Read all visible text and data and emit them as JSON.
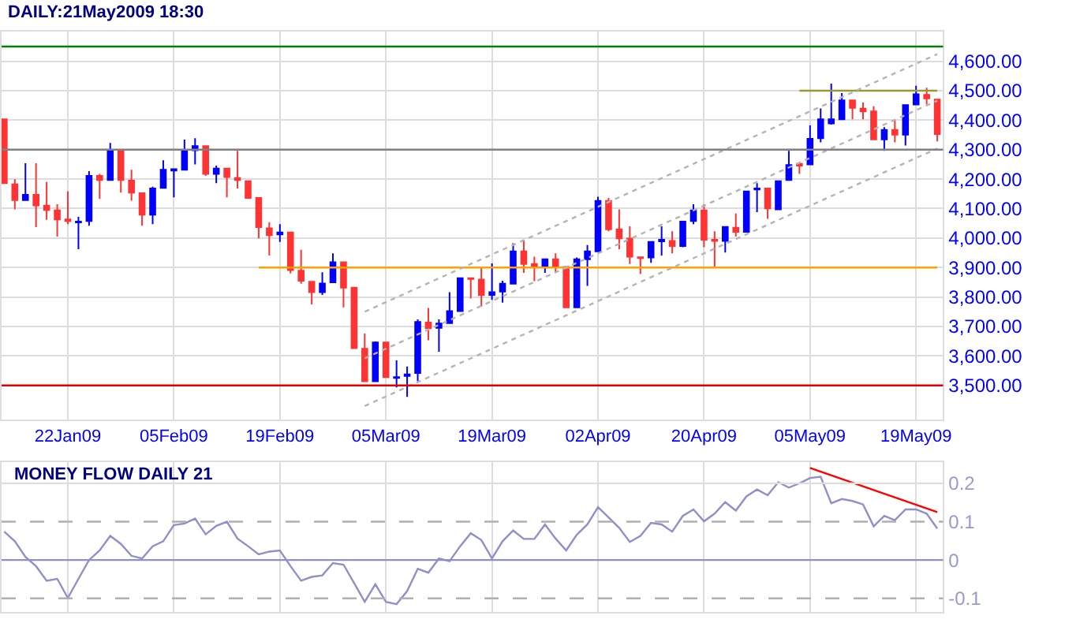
{
  "chart_data": [
    {
      "type": "candlestick",
      "title": "DAILY:21May2009 18:30",
      "categories": [
        null,
        null,
        null,
        null,
        null,
        null,
        "22Jan09",
        null,
        null,
        null,
        null,
        null,
        null,
        null,
        null,
        null,
        "05Feb09",
        null,
        null,
        null,
        null,
        null,
        null,
        null,
        null,
        null,
        "19Feb09",
        null,
        null,
        null,
        null,
        null,
        null,
        null,
        null,
        null,
        "05Mar09",
        null,
        null,
        null,
        null,
        null,
        null,
        null,
        null,
        null,
        "19Mar09",
        null,
        null,
        null,
        null,
        null,
        null,
        null,
        null,
        null,
        "02Apr09",
        null,
        null,
        null,
        null,
        null,
        null,
        null,
        null,
        null,
        "20Apr09",
        null,
        null,
        null,
        null,
        null,
        null,
        null,
        null,
        null,
        "05May09",
        null,
        null,
        null,
        null,
        null,
        null,
        null,
        null,
        null,
        "19May09",
        null,
        null
      ],
      "ohlc": [
        [
          4403,
          4403,
          4186,
          4186
        ],
        [
          4182,
          4200,
          4097,
          4129
        ],
        [
          4129,
          4254,
          4129,
          4147
        ],
        [
          4147,
          4254,
          4037,
          4111
        ],
        [
          4110,
          4190,
          4062,
          4095
        ],
        [
          4094,
          4115,
          4005,
          4063
        ],
        [
          4063,
          4158,
          4047,
          4058
        ],
        [
          4053,
          4072,
          3962,
          4056
        ],
        [
          4058,
          4227,
          4042,
          4211
        ],
        [
          4211,
          4218,
          4133,
          4197
        ],
        [
          4197,
          4323,
          4197,
          4296
        ],
        [
          4296,
          4296,
          4154,
          4197
        ],
        [
          4195,
          4232,
          4127,
          4154
        ],
        [
          4152,
          4152,
          4042,
          4079
        ],
        [
          4079,
          4174,
          4047,
          4168
        ],
        [
          4170,
          4264,
          4168,
          4232
        ],
        [
          4229,
          4236,
          4138,
          4234
        ],
        [
          4232,
          4334,
          4229,
          4298
        ],
        [
          4298,
          4339,
          4250,
          4312
        ],
        [
          4312,
          4312,
          4211,
          4218
        ],
        [
          4218,
          4246,
          4186,
          4236
        ],
        [
          4236,
          4236,
          4138,
          4207
        ],
        [
          4204,
          4296,
          4168,
          4197
        ],
        [
          4193,
          4193,
          4133,
          4136
        ],
        [
          4136,
          4136,
          3999,
          4037
        ],
        [
          4033,
          4054,
          3941,
          4010
        ],
        [
          4012,
          4047,
          3987,
          4019
        ],
        [
          4019,
          4019,
          3880,
          3891
        ],
        [
          3889,
          3960,
          3845,
          3855
        ],
        [
          3852,
          3852,
          3775,
          3816
        ],
        [
          3816,
          3884,
          3807,
          3846
        ],
        [
          3850,
          3948,
          3850,
          3918
        ],
        [
          3918,
          3918,
          3765,
          3832
        ],
        [
          3832,
          3832,
          3626,
          3626
        ],
        [
          3624,
          3676,
          3514,
          3514
        ],
        [
          3514,
          3649,
          3514,
          3646
        ],
        [
          3646,
          3646,
          3525,
          3528
        ],
        [
          3525,
          3585,
          3493,
          3528
        ],
        [
          3532,
          3564,
          3461,
          3537
        ],
        [
          3542,
          3724,
          3514,
          3715
        ],
        [
          3713,
          3763,
          3653,
          3694
        ],
        [
          3695,
          3724,
          3614,
          3710
        ],
        [
          3711,
          3816,
          3711,
          3752
        ],
        [
          3752,
          3864,
          3752,
          3864
        ],
        [
          3864,
          3864,
          3795,
          3861
        ],
        [
          3859,
          3902,
          3768,
          3807
        ],
        [
          3807,
          3914,
          3790,
          3816
        ],
        [
          3818,
          3855,
          3781,
          3845
        ],
        [
          3845,
          3982,
          3845,
          3955
        ],
        [
          3955,
          3994,
          3882,
          3912
        ],
        [
          3912,
          3937,
          3854,
          3903
        ],
        [
          3903,
          3928,
          3882,
          3928
        ],
        [
          3928,
          3948,
          3882,
          3903
        ],
        [
          3902,
          3902,
          3765,
          3765
        ],
        [
          3765,
          3934,
          3765,
          3928
        ],
        [
          3928,
          3976,
          3838,
          3955
        ],
        [
          3955,
          4140,
          3955,
          4126
        ],
        [
          4126,
          4136,
          4023,
          4030
        ],
        [
          4030,
          4097,
          3962,
          3999
        ],
        [
          3998,
          4040,
          3912,
          3937
        ],
        [
          3935,
          3935,
          3878,
          3932
        ],
        [
          3934,
          3987,
          3916,
          3987
        ],
        [
          3989,
          4040,
          3941,
          3994
        ],
        [
          3990,
          4023,
          3948,
          3973
        ],
        [
          3973,
          4056,
          3969,
          4056
        ],
        [
          4058,
          4115,
          4047,
          4094
        ],
        [
          4094,
          4115,
          3969,
          3994
        ],
        [
          3994,
          4023,
          3898,
          3990
        ],
        [
          3990,
          4040,
          3951,
          4038
        ],
        [
          4035,
          4083,
          4005,
          4021
        ],
        [
          4021,
          4158,
          4021,
          4158
        ],
        [
          4165,
          4186,
          4088,
          4168
        ],
        [
          4168,
          4168,
          4065,
          4101
        ],
        [
          4097,
          4193,
          4097,
          4193
        ],
        [
          4197,
          4296,
          4197,
          4248
        ],
        [
          4252,
          4252,
          4218,
          4246
        ],
        [
          4250,
          4382,
          4250,
          4337
        ],
        [
          4339,
          4440,
          4325,
          4403
        ],
        [
          4389,
          4524,
          4385,
          4403
        ],
        [
          4403,
          4492,
          4403,
          4467
        ],
        [
          4467,
          4470,
          4403,
          4442
        ],
        [
          4439,
          4460,
          4403,
          4430
        ],
        [
          4430,
          4447,
          4335,
          4335
        ],
        [
          4335,
          4376,
          4296,
          4367
        ],
        [
          4367,
          4399,
          4325,
          4351
        ],
        [
          4351,
          4451,
          4314,
          4451
        ],
        [
          4453,
          4517,
          4453,
          4488
        ],
        [
          4486,
          4510,
          4453,
          4474
        ],
        [
          4470,
          4470,
          4328,
          4353
        ]
      ],
      "colors": [
        "#ff3333",
        "#ff3333",
        "#0000ff",
        "#ff3333",
        "#ff3333",
        "#ff3333",
        "#ff3333",
        "#0000ff",
        "#0000ff",
        "#ff3333",
        "#0000ff",
        "#ff3333",
        "#ff3333",
        "#ff3333",
        "#0000ff",
        "#0000ff",
        "#0000ff",
        "#0000ff",
        "#0000ff",
        "#ff3333",
        "#0000ff",
        "#ff3333",
        "#ff3333",
        "#ff3333",
        "#ff3333",
        "#ff3333",
        "#0000ff",
        "#ff3333",
        "#ff3333",
        "#ff3333",
        "#0000ff",
        "#0000ff",
        "#ff3333",
        "#ff3333",
        "#ff3333",
        "#0000ff",
        "#ff3333",
        "#0000ff",
        "#0000ff",
        "#0000ff",
        "#ff3333",
        "#0000ff",
        "#0000ff",
        "#0000ff",
        "#ff3333",
        "#ff3333",
        "#0000ff",
        "#0000ff",
        "#0000ff",
        "#ff3333",
        "#ff3333",
        "#0000ff",
        "#ff3333",
        "#ff3333",
        "#0000ff",
        "#0000ff",
        "#0000ff",
        "#ff3333",
        "#ff3333",
        "#ff3333",
        "#ff3333",
        "#0000ff",
        "#0000ff",
        "#ff3333",
        "#0000ff",
        "#0000ff",
        "#ff3333",
        "#ff3333",
        "#0000ff",
        "#ff3333",
        "#0000ff",
        "#0000ff",
        "#ff3333",
        "#0000ff",
        "#0000ff",
        "#ff3333",
        "#0000ff",
        "#0000ff",
        "#0000ff",
        "#0000ff",
        "#ff3333",
        "#ff3333",
        "#ff3333",
        "#0000ff",
        "#ff3333",
        "#0000ff",
        "#0000ff",
        "#ff3333",
        "#ff3333"
      ],
      "series": [
        {
          "type": "line",
          "color": "#ffa000",
          "line_style": "solid",
          "values": [
            null,
            null,
            null,
            null,
            null,
            null,
            null,
            null,
            null,
            null,
            null,
            null,
            null,
            null,
            null,
            null,
            null,
            null,
            null,
            null,
            null,
            null,
            null,
            null,
            3900,
            null,
            null,
            null,
            null,
            null,
            null,
            null,
            null,
            null,
            null,
            null,
            null,
            null,
            null,
            null,
            null,
            null,
            null,
            null,
            null,
            null,
            null,
            null,
            null,
            null,
            null,
            null,
            null,
            null,
            null,
            null,
            null,
            null,
            null,
            null,
            null,
            null,
            null,
            null,
            null,
            null,
            null,
            null,
            null,
            null,
            null,
            null,
            null,
            null,
            null,
            null,
            null,
            null,
            null,
            null,
            null,
            null,
            null,
            null,
            null,
            null,
            null,
            null,
            3900
          ]
        },
        {
          "type": "line",
          "color": "#999933",
          "line_style": "solid",
          "values": [
            null,
            null,
            null,
            null,
            null,
            null,
            null,
            null,
            null,
            null,
            null,
            null,
            null,
            null,
            null,
            null,
            null,
            null,
            null,
            null,
            null,
            null,
            null,
            null,
            null,
            null,
            null,
            null,
            null,
            null,
            null,
            null,
            null,
            null,
            null,
            null,
            null,
            null,
            null,
            null,
            null,
            null,
            null,
            null,
            null,
            null,
            null,
            null,
            null,
            null,
            null,
            null,
            null,
            null,
            null,
            null,
            null,
            null,
            null,
            null,
            null,
            null,
            null,
            null,
            null,
            null,
            null,
            null,
            null,
            null,
            null,
            null,
            null,
            null,
            null,
            4500,
            null,
            null,
            null,
            null,
            null,
            null,
            null,
            null,
            null,
            null,
            null,
            null,
            4500
          ]
        },
        {
          "type": "line",
          "color": "#b4b4b4",
          "line_style": "dotted",
          "values": [
            null,
            null,
            null,
            null,
            null,
            null,
            null,
            null,
            null,
            null,
            null,
            null,
            null,
            null,
            null,
            null,
            null,
            null,
            null,
            null,
            null,
            null,
            null,
            null,
            null,
            null,
            null,
            null,
            null,
            null,
            null,
            null,
            null,
            null,
            3750,
            null,
            null,
            null,
            null,
            null,
            null,
            null,
            null,
            null,
            null,
            null,
            null,
            null,
            null,
            null,
            null,
            null,
            null,
            null,
            null,
            null,
            null,
            null,
            null,
            null,
            null,
            null,
            null,
            null,
            null,
            null,
            null,
            null,
            null,
            null,
            null,
            null,
            null,
            null,
            null,
            null,
            null,
            null,
            null,
            null,
            null,
            null,
            null,
            null,
            null,
            null,
            null,
            null,
            4624
          ]
        },
        {
          "type": "line",
          "color": "#b4b4b4",
          "line_style": "dotted",
          "values": [
            null,
            null,
            null,
            null,
            null,
            null,
            null,
            null,
            null,
            null,
            null,
            null,
            null,
            null,
            null,
            null,
            null,
            null,
            null,
            null,
            null,
            null,
            null,
            null,
            null,
            null,
            null,
            null,
            null,
            null,
            null,
            null,
            null,
            null,
            3592,
            null,
            null,
            null,
            null,
            null,
            null,
            null,
            null,
            null,
            null,
            null,
            null,
            null,
            null,
            null,
            null,
            null,
            null,
            null,
            null,
            null,
            null,
            null,
            null,
            null,
            null,
            null,
            null,
            null,
            null,
            null,
            null,
            null,
            null,
            null,
            null,
            null,
            null,
            null,
            null,
            null,
            null,
            null,
            null,
            null,
            null,
            null,
            null,
            null,
            null,
            null,
            null,
            null,
            4466
          ]
        },
        {
          "type": "line",
          "color": "#b4b4b4",
          "line_style": "dotted",
          "values": [
            null,
            null,
            null,
            null,
            null,
            null,
            null,
            null,
            null,
            null,
            null,
            null,
            null,
            null,
            null,
            null,
            null,
            null,
            null,
            null,
            null,
            null,
            null,
            null,
            null,
            null,
            null,
            null,
            null,
            null,
            null,
            null,
            null,
            null,
            3430,
            null,
            null,
            null,
            null,
            null,
            null,
            null,
            null,
            null,
            null,
            null,
            null,
            null,
            null,
            null,
            null,
            null,
            null,
            null,
            null,
            null,
            null,
            null,
            null,
            null,
            null,
            null,
            null,
            null,
            null,
            null,
            null,
            null,
            null,
            null,
            null,
            null,
            null,
            null,
            null,
            null,
            null,
            null,
            null,
            null,
            null,
            null,
            null,
            null,
            null,
            null,
            null,
            null,
            4304
          ]
        }
      ],
      "ylim": [
        3385,
        4700
      ],
      "yticks": [
        {
          "value": 3500,
          "label": "3,500.00"
        },
        {
          "value": 3600,
          "label": "3,600.00"
        },
        {
          "value": 3700,
          "label": "3,700.00"
        },
        {
          "value": 3800,
          "label": "3,800.00"
        },
        {
          "value": 3900,
          "label": "3,900.00"
        },
        {
          "value": 4000,
          "label": "4,000.00"
        },
        {
          "value": 4100,
          "label": "4,100.00"
        },
        {
          "value": 4200,
          "label": "4,200.00"
        },
        {
          "value": 4300,
          "label": "4,300.00"
        },
        {
          "value": 4400,
          "label": "4,400.00"
        },
        {
          "value": 4500,
          "label": "4,500.00"
        },
        {
          "value": 4600,
          "label": "4,600.00"
        }
      ],
      "ref_lines": [
        {
          "axis": "y",
          "value": 4650,
          "color": "#008000"
        },
        {
          "axis": "y",
          "value": 4300,
          "color": "#808080"
        },
        {
          "axis": "y",
          "value": 3500,
          "color": "#e00000"
        }
      ],
      "grid": true
    },
    {
      "type": "line",
      "title": "MONEY FLOW DAILY 21",
      "categories": [
        null,
        null,
        null,
        null,
        null,
        null,
        null,
        null,
        null,
        null,
        null,
        null,
        null,
        null,
        null,
        null,
        null,
        null,
        null,
        null,
        null,
        null,
        null,
        null,
        null,
        null,
        null,
        null,
        null,
        null,
        null,
        null,
        null,
        null,
        null,
        null,
        null,
        null,
        null,
        null,
        null,
        null,
        null,
        null,
        null,
        null,
        null,
        null,
        null,
        null,
        null,
        null,
        null,
        null,
        null,
        null,
        null,
        null,
        null,
        null,
        null,
        null,
        null,
        null,
        null,
        null,
        null,
        null,
        null,
        null,
        null,
        null,
        null,
        null,
        null,
        null,
        null,
        null,
        null,
        null,
        null,
        null,
        null,
        null,
        null,
        null,
        null,
        null,
        null
      ],
      "series": [
        {
          "color": "#9090c8",
          "values": [
            0.074,
            0.049,
            0.008,
            -0.016,
            -0.054,
            -0.049,
            -0.099,
            -0.049,
            0.0,
            0.025,
            0.063,
            0.042,
            0.011,
            0.004,
            0.036,
            0.049,
            0.091,
            0.095,
            0.108,
            0.067,
            0.089,
            0.1,
            0.056,
            0.036,
            0.015,
            0.022,
            0.025,
            -0.016,
            -0.054,
            -0.044,
            -0.04,
            -0.008,
            -0.012,
            -0.06,
            -0.109,
            -0.063,
            -0.109,
            -0.115,
            -0.081,
            -0.023,
            -0.033,
            0.004,
            -0.003,
            0.036,
            0.07,
            0.052,
            0.004,
            0.049,
            0.077,
            0.055,
            0.055,
            0.093,
            0.056,
            0.025,
            0.066,
            0.093,
            0.138,
            0.111,
            0.084,
            0.047,
            0.063,
            0.097,
            0.093,
            0.074,
            0.115,
            0.132,
            0.101,
            0.121,
            0.151,
            0.129,
            0.166,
            0.184,
            0.169,
            0.203,
            0.189,
            0.2,
            0.214,
            0.217,
            0.148,
            0.159,
            0.154,
            0.145,
            0.088,
            0.115,
            0.104,
            0.132,
            0.132,
            0.121,
            0.082
          ]
        },
        {
          "color": "#ff0000",
          "values": [
            null,
            null,
            null,
            null,
            null,
            null,
            null,
            null,
            null,
            null,
            null,
            null,
            null,
            null,
            null,
            null,
            null,
            null,
            null,
            null,
            null,
            null,
            null,
            null,
            null,
            null,
            null,
            null,
            null,
            null,
            null,
            null,
            null,
            null,
            null,
            null,
            null,
            null,
            null,
            null,
            null,
            null,
            null,
            null,
            null,
            null,
            null,
            null,
            null,
            null,
            null,
            null,
            null,
            null,
            null,
            null,
            null,
            null,
            null,
            null,
            null,
            null,
            null,
            null,
            null,
            null,
            null,
            null,
            null,
            null,
            null,
            null,
            null,
            null,
            null,
            null,
            0.24,
            null,
            null,
            null,
            null,
            null,
            null,
            null,
            null,
            null,
            null,
            null,
            0.125
          ]
        }
      ],
      "ylim": [
        -0.135,
        0.255
      ],
      "yticks": [
        {
          "value": -0.1,
          "label": "-0.1"
        },
        0,
        0.1,
        0.2
      ],
      "ref_lines": [
        {
          "axis": "y",
          "value": 0,
          "color": "#9090c8",
          "line_style": "solid"
        },
        {
          "axis": "y",
          "value": 0.1,
          "color": "#b0b0b0",
          "line_style": "dashed"
        },
        {
          "axis": "y",
          "value": -0.1,
          "color": "#b0b0b0",
          "line_style": "dashed"
        },
        {
          "axis": "y",
          "value": 0.2,
          "color": "#dddddd",
          "line_style": "solid"
        }
      ],
      "grid": "x",
      "tick_labels": "y"
    }
  ]
}
